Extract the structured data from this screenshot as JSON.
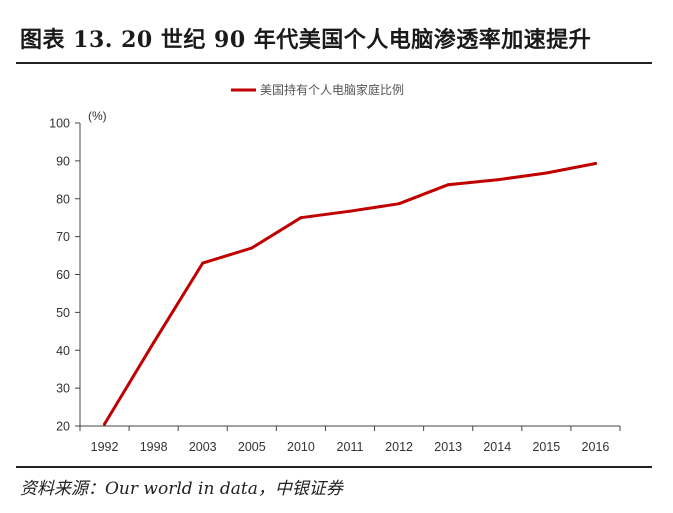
{
  "header": {
    "title": "图表 13. 20 世纪 90 年代美国个人电脑渗透率加速提升"
  },
  "footer": {
    "source": "资料来源：Our world in data，中银证券"
  },
  "colors": {
    "series": "#c00000",
    "axis": "#444444"
  },
  "chart_data": {
    "type": "line",
    "title": "",
    "xlabel": "",
    "ylabel": "(%)",
    "ylim": [
      20,
      100
    ],
    "yticks": [
      20,
      30,
      40,
      50,
      60,
      70,
      80,
      90,
      100
    ],
    "categories": [
      "1992",
      "1998",
      "2003",
      "2005",
      "2010",
      "2011",
      "2012",
      "2013",
      "2014",
      "2015",
      "2016"
    ],
    "series": [
      {
        "name": "美国持有个人电脑家庭比例",
        "values": [
          20.5,
          42,
          63,
          67,
          75,
          76.7,
          78.7,
          83.7,
          85,
          86.8,
          89.3
        ]
      }
    ],
    "legend": "top-center",
    "grid": false
  }
}
